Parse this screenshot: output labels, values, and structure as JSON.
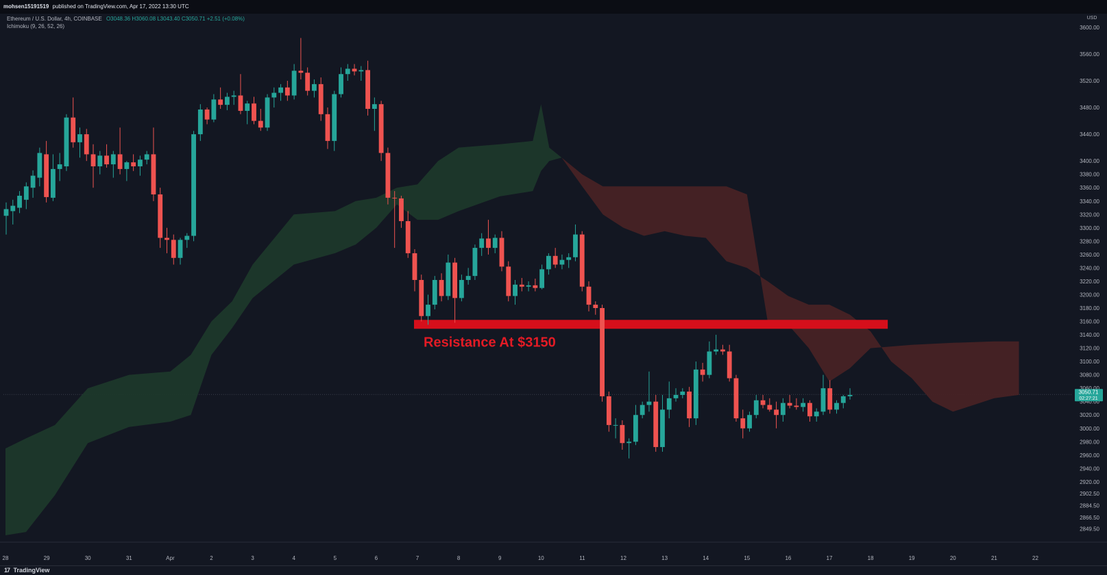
{
  "header": {
    "publisher": "mohsen15191519",
    "published_text": "published on TradingView.com, Apr 17, 2022 13:30 UTC"
  },
  "legend": {
    "symbol": "Ethereum / U.S. Dollar, 4h, COINBASE",
    "ohlc": "O3048.36  H3060.08  L3043.40  C3050.71  +2.51 (+0.08%)",
    "indicator": "Ichimoku (9, 26, 52, 26)"
  },
  "footer": {
    "brand": "TradingView",
    "logo_icon": "tradingview-logo-icon"
  },
  "colors": {
    "background": "#131722",
    "up": "#26a69a",
    "down": "#ef5350",
    "cloud_bull": "#1e3a2b",
    "cloud_bear": "#4a2225",
    "resistance": "#d60f1b",
    "resistance_text": "#e31b25",
    "axis_text": "#b2b5be"
  },
  "chart_data": {
    "type": "candlestick",
    "symbol": "ETHUSD",
    "timeframe": "4h",
    "exchange": "COINBASE",
    "currency": "USD",
    "ylim": [
      2840,
      3605
    ],
    "y_ticks": [
      "3600.00",
      "3560.00",
      "3520.00",
      "3480.00",
      "3440.00",
      "3400.00",
      "3380.00",
      "3360.00",
      "3340.00",
      "3320.00",
      "3300.00",
      "3280.00",
      "3260.00",
      "3240.00",
      "3220.00",
      "3200.00",
      "3180.00",
      "3160.00",
      "3140.00",
      "3120.00",
      "3100.00",
      "3080.00",
      "3060.00",
      "3040.00",
      "3020.00",
      "3000.00",
      "2980.00",
      "2960.00",
      "2940.00",
      "2920.00",
      "2902.50",
      "2884.50",
      "2866.50",
      "2849.50"
    ],
    "x_ticks": [
      {
        "label": "28",
        "day": 0
      },
      {
        "label": "29",
        "day": 1
      },
      {
        "label": "30",
        "day": 2
      },
      {
        "label": "31",
        "day": 3
      },
      {
        "label": "Apr",
        "day": 4
      },
      {
        "label": "2",
        "day": 5
      },
      {
        "label": "3",
        "day": 6
      },
      {
        "label": "4",
        "day": 7
      },
      {
        "label": "5",
        "day": 8
      },
      {
        "label": "6",
        "day": 9
      },
      {
        "label": "7",
        "day": 10
      },
      {
        "label": "8",
        "day": 11
      },
      {
        "label": "9",
        "day": 12
      },
      {
        "label": "10",
        "day": 13
      },
      {
        "label": "11",
        "day": 14
      },
      {
        "label": "12",
        "day": 15
      },
      {
        "label": "13",
        "day": 16
      },
      {
        "label": "14",
        "day": 17
      },
      {
        "label": "15",
        "day": 18
      },
      {
        "label": "16",
        "day": 19
      },
      {
        "label": "17",
        "day": 20
      },
      {
        "label": "18",
        "day": 21
      },
      {
        "label": "19",
        "day": 22
      },
      {
        "label": "20",
        "day": 23
      },
      {
        "label": "21",
        "day": 24
      },
      {
        "label": "22",
        "day": 25
      }
    ],
    "last_price": {
      "label": "3050.71",
      "countdown": "02:27:21",
      "value": 3050.71
    },
    "resistance": {
      "label": "Resistance At $3150",
      "value": 3150,
      "from_day": 10,
      "to_day": 21.5
    },
    "candles": [
      {
        "o": 3318,
        "h": 3338,
        "l": 3290,
        "c": 3328
      },
      {
        "o": 3325,
        "h": 3342,
        "l": 3305,
        "c": 3333
      },
      {
        "o": 3330,
        "h": 3355,
        "l": 3322,
        "c": 3348
      },
      {
        "o": 3342,
        "h": 3368,
        "l": 3328,
        "c": 3362
      },
      {
        "o": 3360,
        "h": 3386,
        "l": 3345,
        "c": 3378
      },
      {
        "o": 3375,
        "h": 3420,
        "l": 3362,
        "c": 3412
      },
      {
        "o": 3410,
        "h": 3430,
        "l": 3338,
        "c": 3346
      },
      {
        "o": 3345,
        "h": 3410,
        "l": 3340,
        "c": 3388
      },
      {
        "o": 3388,
        "h": 3412,
        "l": 3370,
        "c": 3395
      },
      {
        "o": 3392,
        "h": 3470,
        "l": 3385,
        "c": 3465
      },
      {
        "o": 3465,
        "h": 3495,
        "l": 3420,
        "c": 3428
      },
      {
        "o": 3428,
        "h": 3450,
        "l": 3405,
        "c": 3440
      },
      {
        "o": 3440,
        "h": 3448,
        "l": 3400,
        "c": 3410
      },
      {
        "o": 3410,
        "h": 3425,
        "l": 3360,
        "c": 3392
      },
      {
        "o": 3392,
        "h": 3415,
        "l": 3380,
        "c": 3408
      },
      {
        "o": 3408,
        "h": 3425,
        "l": 3390,
        "c": 3395
      },
      {
        "o": 3395,
        "h": 3415,
        "l": 3375,
        "c": 3410
      },
      {
        "o": 3410,
        "h": 3450,
        "l": 3380,
        "c": 3388
      },
      {
        "o": 3388,
        "h": 3400,
        "l": 3370,
        "c": 3398
      },
      {
        "o": 3398,
        "h": 3410,
        "l": 3385,
        "c": 3392
      },
      {
        "o": 3392,
        "h": 3408,
        "l": 3378,
        "c": 3402
      },
      {
        "o": 3402,
        "h": 3415,
        "l": 3395,
        "c": 3410
      },
      {
        "o": 3410,
        "h": 3450,
        "l": 3340,
        "c": 3350
      },
      {
        "o": 3350,
        "h": 3360,
        "l": 3270,
        "c": 3285
      },
      {
        "o": 3285,
        "h": 3300,
        "l": 3262,
        "c": 3282
      },
      {
        "o": 3282,
        "h": 3290,
        "l": 3245,
        "c": 3255
      },
      {
        "o": 3255,
        "h": 3285,
        "l": 3245,
        "c": 3282
      },
      {
        "o": 3282,
        "h": 3292,
        "l": 3270,
        "c": 3288
      },
      {
        "o": 3288,
        "h": 3445,
        "l": 3280,
        "c": 3440
      },
      {
        "o": 3440,
        "h": 3485,
        "l": 3430,
        "c": 3477
      },
      {
        "o": 3477,
        "h": 3480,
        "l": 3455,
        "c": 3462
      },
      {
        "o": 3462,
        "h": 3500,
        "l": 3458,
        "c": 3492
      },
      {
        "o": 3492,
        "h": 3510,
        "l": 3478,
        "c": 3484
      },
      {
        "o": 3484,
        "h": 3502,
        "l": 3476,
        "c": 3496
      },
      {
        "o": 3496,
        "h": 3505,
        "l": 3484,
        "c": 3498
      },
      {
        "o": 3498,
        "h": 3530,
        "l": 3470,
        "c": 3475
      },
      {
        "o": 3475,
        "h": 3490,
        "l": 3455,
        "c": 3486
      },
      {
        "o": 3486,
        "h": 3496,
        "l": 3455,
        "c": 3460
      },
      {
        "o": 3460,
        "h": 3478,
        "l": 3445,
        "c": 3450
      },
      {
        "o": 3450,
        "h": 3500,
        "l": 3445,
        "c": 3495
      },
      {
        "o": 3495,
        "h": 3510,
        "l": 3480,
        "c": 3502
      },
      {
        "o": 3502,
        "h": 3515,
        "l": 3490,
        "c": 3510
      },
      {
        "o": 3510,
        "h": 3520,
        "l": 3490,
        "c": 3498
      },
      {
        "o": 3498,
        "h": 3545,
        "l": 3492,
        "c": 3535
      },
      {
        "o": 3535,
        "h": 3584,
        "l": 3522,
        "c": 3532
      },
      {
        "o": 3532,
        "h": 3540,
        "l": 3498,
        "c": 3505
      },
      {
        "o": 3505,
        "h": 3522,
        "l": 3495,
        "c": 3515
      },
      {
        "o": 3515,
        "h": 3525,
        "l": 3460,
        "c": 3470
      },
      {
        "o": 3470,
        "h": 3480,
        "l": 3418,
        "c": 3430
      },
      {
        "o": 3430,
        "h": 3505,
        "l": 3415,
        "c": 3500
      },
      {
        "o": 3500,
        "h": 3540,
        "l": 3495,
        "c": 3530
      },
      {
        "o": 3530,
        "h": 3545,
        "l": 3520,
        "c": 3538
      },
      {
        "o": 3538,
        "h": 3545,
        "l": 3528,
        "c": 3534
      },
      {
        "o": 3534,
        "h": 3542,
        "l": 3520,
        "c": 3536
      },
      {
        "o": 3536,
        "h": 3550,
        "l": 3468,
        "c": 3478
      },
      {
        "o": 3478,
        "h": 3495,
        "l": 3445,
        "c": 3485
      },
      {
        "o": 3485,
        "h": 3490,
        "l": 3400,
        "c": 3412
      },
      {
        "o": 3412,
        "h": 3420,
        "l": 3335,
        "c": 3345
      },
      {
        "o": 3345,
        "h": 3355,
        "l": 3270,
        "c": 3344
      },
      {
        "o": 3344,
        "h": 3348,
        "l": 3300,
        "c": 3310
      },
      {
        "o": 3310,
        "h": 3325,
        "l": 3255,
        "c": 3262
      },
      {
        "o": 3262,
        "h": 3268,
        "l": 3205,
        "c": 3222
      },
      {
        "o": 3222,
        "h": 3230,
        "l": 3160,
        "c": 3168
      },
      {
        "o": 3168,
        "h": 3200,
        "l": 3155,
        "c": 3185
      },
      {
        "o": 3185,
        "h": 3228,
        "l": 3178,
        "c": 3222
      },
      {
        "o": 3222,
        "h": 3232,
        "l": 3190,
        "c": 3198
      },
      {
        "o": 3198,
        "h": 3260,
        "l": 3192,
        "c": 3248
      },
      {
        "o": 3248,
        "h": 3255,
        "l": 3158,
        "c": 3195
      },
      {
        "o": 3195,
        "h": 3230,
        "l": 3190,
        "c": 3222
      },
      {
        "o": 3222,
        "h": 3240,
        "l": 3215,
        "c": 3228
      },
      {
        "o": 3228,
        "h": 3275,
        "l": 3222,
        "c": 3270
      },
      {
        "o": 3270,
        "h": 3292,
        "l": 3258,
        "c": 3284
      },
      {
        "o": 3284,
        "h": 3312,
        "l": 3260,
        "c": 3270
      },
      {
        "o": 3270,
        "h": 3290,
        "l": 3262,
        "c": 3285
      },
      {
        "o": 3285,
        "h": 3295,
        "l": 3235,
        "c": 3242
      },
      {
        "o": 3242,
        "h": 3250,
        "l": 3190,
        "c": 3198
      },
      {
        "o": 3198,
        "h": 3222,
        "l": 3185,
        "c": 3215
      },
      {
        "o": 3215,
        "h": 3225,
        "l": 3205,
        "c": 3212
      },
      {
        "o": 3212,
        "h": 3220,
        "l": 3205,
        "c": 3214
      },
      {
        "o": 3214,
        "h": 3224,
        "l": 3205,
        "c": 3210
      },
      {
        "o": 3210,
        "h": 3245,
        "l": 3208,
        "c": 3238
      },
      {
        "o": 3238,
        "h": 3262,
        "l": 3230,
        "c": 3258
      },
      {
        "o": 3258,
        "h": 3270,
        "l": 3240,
        "c": 3245
      },
      {
        "o": 3245,
        "h": 3260,
        "l": 3238,
        "c": 3252
      },
      {
        "o": 3252,
        "h": 3262,
        "l": 3240,
        "c": 3256
      },
      {
        "o": 3256,
        "h": 3305,
        "l": 3250,
        "c": 3290
      },
      {
        "o": 3290,
        "h": 3295,
        "l": 3205,
        "c": 3212
      },
      {
        "o": 3212,
        "h": 3220,
        "l": 3175,
        "c": 3185
      },
      {
        "o": 3185,
        "h": 3190,
        "l": 3170,
        "c": 3180
      },
      {
        "o": 3180,
        "h": 3185,
        "l": 3040,
        "c": 3048
      },
      {
        "o": 3048,
        "h": 3055,
        "l": 2995,
        "c": 3005
      },
      {
        "o": 3005,
        "h": 3015,
        "l": 2985,
        "c": 3005
      },
      {
        "o": 3005,
        "h": 3012,
        "l": 2968,
        "c": 2978
      },
      {
        "o": 2978,
        "h": 2985,
        "l": 2955,
        "c": 2980
      },
      {
        "o": 2980,
        "h": 3035,
        "l": 2975,
        "c": 3020
      },
      {
        "o": 3020,
        "h": 3040,
        "l": 3015,
        "c": 3035
      },
      {
        "o": 3035,
        "h": 3085,
        "l": 3025,
        "c": 3040
      },
      {
        "o": 3040,
        "h": 3050,
        "l": 2965,
        "c": 2972
      },
      {
        "o": 2972,
        "h": 3050,
        "l": 2965,
        "c": 3028
      },
      {
        "o": 3028,
        "h": 3070,
        "l": 3015,
        "c": 3045
      },
      {
        "o": 3045,
        "h": 3060,
        "l": 3040,
        "c": 3050
      },
      {
        "o": 3050,
        "h": 3060,
        "l": 3045,
        "c": 3055
      },
      {
        "o": 3055,
        "h": 3062,
        "l": 3002,
        "c": 3015
      },
      {
        "o": 3015,
        "h": 3100,
        "l": 3005,
        "c": 3088
      },
      {
        "o": 3088,
        "h": 3098,
        "l": 3070,
        "c": 3080
      },
      {
        "o": 3080,
        "h": 3130,
        "l": 3075,
        "c": 3115
      },
      {
        "o": 3115,
        "h": 3140,
        "l": 3110,
        "c": 3118
      },
      {
        "o": 3118,
        "h": 3125,
        "l": 3110,
        "c": 3115
      },
      {
        "o": 3115,
        "h": 3125,
        "l": 3070,
        "c": 3075
      },
      {
        "o": 3075,
        "h": 3080,
        "l": 3010,
        "c": 3015
      },
      {
        "o": 3015,
        "h": 3028,
        "l": 2985,
        "c": 3000
      },
      {
        "o": 3000,
        "h": 3025,
        "l": 2995,
        "c": 3020
      },
      {
        "o": 3020,
        "h": 3050,
        "l": 3015,
        "c": 3042
      },
      {
        "o": 3042,
        "h": 3050,
        "l": 3030,
        "c": 3035
      },
      {
        "o": 3035,
        "h": 3045,
        "l": 3025,
        "c": 3028
      },
      {
        "o": 3028,
        "h": 3040,
        "l": 3000,
        "c": 3020
      },
      {
        "o": 3020,
        "h": 3045,
        "l": 3010,
        "c": 3038
      },
      {
        "o": 3038,
        "h": 3050,
        "l": 3030,
        "c": 3034
      },
      {
        "o": 3034,
        "h": 3045,
        "l": 3028,
        "c": 3032
      },
      {
        "o": 3032,
        "h": 3045,
        "l": 3025,
        "c": 3038
      },
      {
        "o": 3038,
        "h": 3042,
        "l": 3010,
        "c": 3018
      },
      {
        "o": 3018,
        "h": 3030,
        "l": 3010,
        "c": 3025
      },
      {
        "o": 3025,
        "h": 3080,
        "l": 3020,
        "c": 3060
      },
      {
        "o": 3060,
        "h": 3072,
        "l": 3022,
        "c": 3028
      },
      {
        "o": 3028,
        "h": 3042,
        "l": 3022,
        "c": 3038
      },
      {
        "o": 3038,
        "h": 3050,
        "l": 3030,
        "c": 3048
      },
      {
        "o": 3048,
        "h": 3060,
        "l": 3043,
        "c": 3050
      }
    ],
    "cloud_bull": {
      "span_a": [
        [
          0,
          2970
        ],
        [
          0.5,
          2985
        ],
        [
          1.2,
          3005
        ],
        [
          2,
          3060
        ],
        [
          3,
          3080
        ],
        [
          4,
          3085
        ],
        [
          4.5,
          3110
        ],
        [
          5,
          3160
        ],
        [
          5.5,
          3190
        ],
        [
          6,
          3245
        ],
        [
          7,
          3320
        ],
        [
          8,
          3325
        ],
        [
          8.5,
          3340
        ],
        [
          9,
          3345
        ],
        [
          9.5,
          3360
        ],
        [
          10,
          3365
        ],
        [
          10.5,
          3400
        ],
        [
          11,
          3420
        ],
        [
          12,
          3425
        ],
        [
          12.8,
          3430
        ],
        [
          13,
          3485
        ],
        [
          13.2,
          3420
        ],
        [
          13.5,
          3405
        ]
      ],
      "span_b": [
        [
          0,
          2840
        ],
        [
          0.5,
          2845
        ],
        [
          1.2,
          2900
        ],
        [
          2,
          2978
        ],
        [
          3,
          3002
        ],
        [
          4,
          3010
        ],
        [
          4.5,
          3020
        ],
        [
          5,
          3110
        ],
        [
          5.5,
          3150
        ],
        [
          6,
          3195
        ],
        [
          7,
          3245
        ],
        [
          8,
          3262
        ],
        [
          8.5,
          3275
        ],
        [
          9,
          3300
        ],
        [
          9.5,
          3335
        ],
        [
          10,
          3312
        ],
        [
          10.5,
          3312
        ],
        [
          11,
          3325
        ],
        [
          12,
          3347
        ],
        [
          12.8,
          3355
        ],
        [
          13,
          3385
        ],
        [
          13.2,
          3400
        ],
        [
          13.5,
          3405
        ]
      ]
    },
    "cloud_bear": {
      "span_a": [
        [
          13.5,
          3405
        ],
        [
          14,
          3380
        ],
        [
          14.5,
          3362
        ],
        [
          15,
          3362
        ],
        [
          16,
          3362
        ],
        [
          17,
          3362
        ],
        [
          17.5,
          3362
        ],
        [
          18,
          3350
        ],
        [
          18.5,
          3160
        ],
        [
          19,
          3155
        ],
        [
          19.5,
          3120
        ],
        [
          20,
          3070
        ],
        [
          20.5,
          3090
        ],
        [
          21,
          3120
        ],
        [
          22,
          3125
        ],
        [
          23,
          3128
        ],
        [
          24,
          3130
        ],
        [
          24.6,
          3130
        ]
      ],
      "span_b": [
        [
          13.5,
          3405
        ],
        [
          14,
          3362
        ],
        [
          14.5,
          3320
        ],
        [
          15,
          3300
        ],
        [
          15.5,
          3288
        ],
        [
          16,
          3295
        ],
        [
          16.5,
          3288
        ],
        [
          17,
          3285
        ],
        [
          17.5,
          3250
        ],
        [
          18,
          3240
        ],
        [
          18.5,
          3220
        ],
        [
          19,
          3198
        ],
        [
          19.5,
          3185
        ],
        [
          20,
          3185
        ],
        [
          20.5,
          3170
        ],
        [
          21,
          3145
        ],
        [
          21.5,
          3100
        ],
        [
          22,
          3075
        ],
        [
          22.5,
          3040
        ],
        [
          23,
          3025
        ],
        [
          23.5,
          3035
        ],
        [
          24,
          3045
        ],
        [
          24.6,
          3050
        ]
      ]
    }
  }
}
